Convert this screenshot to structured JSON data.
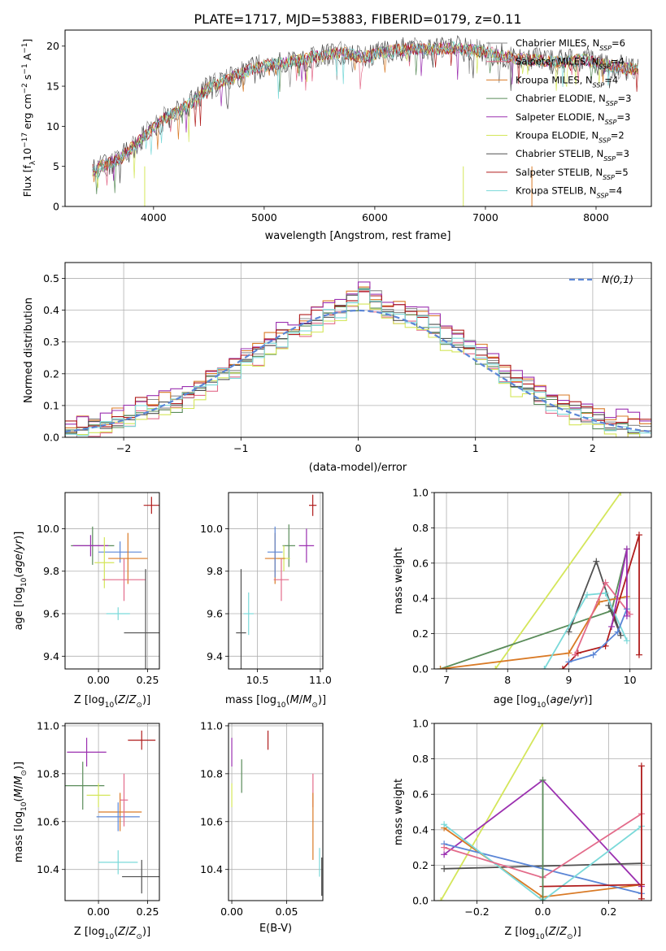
{
  "title": "PLATE=1717, MJD=53883, FIBERID=0179, z=0.11",
  "colors": {
    "chabrier_miles": "#8c8c8c",
    "salpeter_miles": "#e36b8a",
    "kroupa_miles": "#d97a26",
    "chabrier_elodie": "#5a8c5a",
    "salpeter_elodie": "#9b30b0",
    "kroupa_elodie": "#d4e65a",
    "chabrier_stelib": "#505050",
    "salpeter_stelib": "#b01c1c",
    "kroupa_stelib": "#7ad9d9",
    "blue": "#5b86d6",
    "grid": "#b0b0b0"
  },
  "chart_data": [
    {
      "type": "line",
      "panel": "spectrum",
      "xlabel": "wavelength [Angstrom, rest frame]",
      "ylabel": "Flux [f_λ10^−17 erg cm^−2 s^−1 A^−1]",
      "xlim": [
        3200,
        8500
      ],
      "ylim": [
        0,
        22
      ],
      "xticks": [
        4000,
        5000,
        6000,
        7000,
        8000
      ],
      "yticks": [
        0,
        5,
        10,
        15,
        20
      ],
      "legend_position": "right",
      "x": [
        3450,
        3700,
        3900,
        4100,
        4300,
        4500,
        4700,
        4900,
        5100,
        5300,
        5500,
        5700,
        5900,
        6100,
        6300,
        6500,
        6700,
        6900,
        7100,
        7300,
        7500,
        7700,
        7900,
        8100,
        8300
      ],
      "y": [
        4.5,
        6.0,
        8.5,
        11.0,
        12.5,
        14.8,
        16.0,
        17.2,
        17.8,
        18.2,
        18.8,
        19.2,
        18.6,
        19.3,
        19.6,
        19.6,
        19.8,
        19.4,
        19.0,
        18.4,
        18.2,
        18.0,
        18.3,
        17.6,
        17.2
      ],
      "series": [
        {
          "name": "Chabrier MILES, N_SSP=6",
          "label_main": "Chabrier MILES, N",
          "label_sub": "SSP",
          "label_tail": "=6",
          "color_key": "chabrier_miles"
        },
        {
          "name": "Salpeter MILES, N_SSP=4",
          "label_main": "Salpeter MILES, N",
          "label_sub": "SSP",
          "label_tail": "=4",
          "color_key": "salpeter_miles"
        },
        {
          "name": "Kroupa MILES, N_SSP=4",
          "label_main": "Kroupa MILES, N",
          "label_sub": "SSP",
          "label_tail": "=4",
          "color_key": "kroupa_miles"
        },
        {
          "name": "Chabrier ELODIE, N_SSP=3",
          "label_main": "Chabrier ELODIE, N",
          "label_sub": "SSP",
          "label_tail": "=3",
          "color_key": "chabrier_elodie"
        },
        {
          "name": "Salpeter ELODIE, N_SSP=3",
          "label_main": "Salpeter ELODIE, N",
          "label_sub": "SSP",
          "label_tail": "=3",
          "color_key": "salpeter_elodie"
        },
        {
          "name": "Kroupa ELODIE, N_SSP=2",
          "label_main": "Kroupa ELODIE, N",
          "label_sub": "SSP",
          "label_tail": "=2",
          "color_key": "kroupa_elodie"
        },
        {
          "name": "Chabrier STELIB, N_SSP=3",
          "label_main": "Chabrier STELIB, N",
          "label_sub": "SSP",
          "label_tail": "=3",
          "color_key": "chabrier_stelib"
        },
        {
          "name": "Salpeter STELIB, N_SSP=5",
          "label_main": "Salpeter STELIB, N",
          "label_sub": "SSP",
          "label_tail": "=5",
          "color_key": "salpeter_stelib"
        },
        {
          "name": "Kroupa STELIB, N_SSP=4",
          "label_main": "Kroupa STELIB, N",
          "label_sub": "SSP",
          "label_tail": "=4",
          "color_key": "kroupa_stelib"
        }
      ]
    },
    {
      "type": "line",
      "panel": "residual_histogram",
      "xlabel": "(data-model)/error",
      "ylabel": "Normed distribution",
      "xlim": [
        -2.5,
        2.5
      ],
      "ylim": [
        0,
        0.55
      ],
      "xticks": [
        -2,
        -1,
        0,
        1,
        2
      ],
      "yticks": [
        0.0,
        0.1,
        0.2,
        0.3,
        0.4,
        0.5
      ],
      "grid": true,
      "legend_label": "N(0,1)",
      "legend_position": "top-right",
      "bin_width": 0.1,
      "histogram_values": [
        0.02,
        0.03,
        0.03,
        0.04,
        0.05,
        0.06,
        0.09,
        0.09,
        0.1,
        0.11,
        0.13,
        0.15,
        0.18,
        0.2,
        0.21,
        0.24,
        0.26,
        0.29,
        0.31,
        0.33,
        0.35,
        0.37,
        0.39,
        0.4,
        0.43,
        0.46,
        0.43,
        0.41,
        0.39,
        0.38,
        0.37,
        0.34,
        0.31,
        0.3,
        0.28,
        0.26,
        0.23,
        0.2,
        0.17,
        0.15,
        0.13,
        0.11,
        0.1,
        0.08,
        0.07,
        0.05,
        0.04,
        0.04,
        0.03,
        0.02
      ],
      "series_offsets": [
        0.01,
        -0.015,
        0.02,
        -0.01,
        0.03,
        -0.02,
        0.0,
        0.015,
        -0.005
      ]
    },
    {
      "type": "scatter",
      "panel": "age_vs_Z",
      "xlabel": "Z [log10(Z/Z⊙)]",
      "ylabel": "age  [log10(age/yr)]",
      "xlim": [
        -0.17,
        0.31
      ],
      "ylim": [
        9.34,
        10.17
      ],
      "xticks": [
        0.0,
        0.25
      ],
      "yticks": [
        9.4,
        9.6,
        9.8,
        10.0
      ],
      "points": [
        {
          "x": 0.27,
          "y": 10.11,
          "xerr": 0.04,
          "yerr": 0.04,
          "color_key": "salpeter_stelib"
        },
        {
          "x": -0.03,
          "y": 9.92,
          "xerr": 0.11,
          "yerr": 0.09,
          "color_key": "chabrier_elodie"
        },
        {
          "x": -0.04,
          "y": 9.92,
          "xerr": 0.09,
          "yerr": 0.05,
          "color_key": "salpeter_elodie"
        },
        {
          "x": 0.11,
          "y": 9.89,
          "xerr": 0.11,
          "yerr": 0.05,
          "color_key": "blue"
        },
        {
          "x": 0.15,
          "y": 9.86,
          "xerr": 0.1,
          "yerr": 0.12,
          "color_key": "kroupa_miles"
        },
        {
          "x": 0.03,
          "y": 9.84,
          "xerr": 0.05,
          "yerr": 0.12,
          "color_key": "kroupa_elodie"
        },
        {
          "x": 0.13,
          "y": 9.76,
          "xerr": 0.11,
          "yerr": 0.1,
          "color_key": "salpeter_miles"
        },
        {
          "x": 0.1,
          "y": 9.6,
          "xerr": 0.06,
          "yerr": 0.03,
          "color_key": "kroupa_stelib"
        },
        {
          "x": 0.24,
          "y": 9.51,
          "xerr": 0.11,
          "yerr": 0.3,
          "color_key": "chabrier_stelib"
        }
      ]
    },
    {
      "type": "scatter",
      "panel": "age_vs_mass",
      "xlabel": "mass [log10(M/M⊙)]",
      "ylabel": "",
      "xlim": [
        10.27,
        11.02
      ],
      "ylim": [
        9.34,
        10.17
      ],
      "xticks": [
        10.5,
        11.0
      ],
      "yticks": [
        9.4,
        9.6,
        9.8,
        10.0
      ],
      "points": [
        {
          "x": 10.94,
          "y": 10.11,
          "xerr": 0.03,
          "yerr": 0.05,
          "color_key": "salpeter_stelib"
        },
        {
          "x": 10.89,
          "y": 9.92,
          "xerr": 0.06,
          "yerr": 0.08,
          "color_key": "salpeter_elodie"
        },
        {
          "x": 10.75,
          "y": 9.92,
          "xerr": 0.05,
          "yerr": 0.1,
          "color_key": "chabrier_elodie"
        },
        {
          "x": 10.71,
          "y": 9.86,
          "xerr": 0.05,
          "yerr": 0.06,
          "color_key": "kroupa_elodie"
        },
        {
          "x": 10.64,
          "y": 9.86,
          "xerr": 0.08,
          "yerr": 0.12,
          "color_key": "kroupa_miles"
        },
        {
          "x": 10.64,
          "y": 9.89,
          "xerr": 0.06,
          "yerr": 0.12,
          "color_key": "blue"
        },
        {
          "x": 10.69,
          "y": 9.76,
          "xerr": 0.06,
          "yerr": 0.1,
          "color_key": "salpeter_miles"
        },
        {
          "x": 10.43,
          "y": 9.6,
          "xerr": 0.04,
          "yerr": 0.1,
          "color_key": "kroupa_stelib"
        },
        {
          "x": 10.37,
          "y": 9.51,
          "xerr": 0.04,
          "yerr": 0.3,
          "color_key": "chabrier_stelib"
        }
      ]
    },
    {
      "type": "line",
      "panel": "mass_weight_vs_age",
      "xlabel": "age  [log10(age/yr)]",
      "ylabel": "mass weight",
      "xlim": [
        6.8,
        10.35
      ],
      "ylim": [
        0,
        1.0
      ],
      "xticks": [
        7,
        8,
        9,
        10
      ],
      "yticks": [
        0.0,
        0.2,
        0.4,
        0.6,
        0.8,
        1.0
      ],
      "series": [
        {
          "color_key": "kroupa_elodie",
          "x": [
            7.8,
            9.85
          ],
          "y": [
            0.0,
            1.0
          ]
        },
        {
          "color_key": "chabrier_elodie",
          "x": [
            6.9,
            9.7,
            9.95
          ],
          "y": [
            0.0,
            0.33,
            0.68
          ]
        },
        {
          "color_key": "kroupa_miles",
          "x": [
            6.9,
            9.0,
            9.5,
            9.95
          ],
          "y": [
            0.0,
            0.09,
            0.38,
            0.41
          ]
        },
        {
          "color_key": "chabrier_stelib",
          "x": [
            9.0,
            9.45,
            9.85,
            9.65
          ],
          "y": [
            0.21,
            0.61,
            0.19,
            0.36
          ]
        },
        {
          "color_key": "salpeter_stelib",
          "x": [
            8.9,
            9.15,
            9.6,
            10.15,
            10.15
          ],
          "y": [
            0.0,
            0.09,
            0.13,
            0.76,
            0.08
          ]
        },
        {
          "color_key": "kroupa_stelib",
          "x": [
            8.6,
            9.3,
            9.6,
            9.95
          ],
          "y": [
            0.0,
            0.42,
            0.43,
            0.16
          ]
        },
        {
          "color_key": "salpeter_miles",
          "x": [
            9.1,
            9.6,
            10.0
          ],
          "y": [
            0.08,
            0.49,
            0.31
          ]
        },
        {
          "color_key": "blue",
          "x": [
            9.0,
            9.4,
            9.8,
            9.95
          ],
          "y": [
            0.04,
            0.08,
            0.21,
            0.34
          ]
        },
        {
          "color_key": "salpeter_elodie",
          "x": [
            9.7,
            9.95,
            9.95
          ],
          "y": [
            0.24,
            0.68,
            0.3
          ]
        }
      ]
    },
    {
      "type": "scatter",
      "panel": "mass_vs_Z",
      "xlabel": "Z [log10(Z/Z⊙)]",
      "ylabel": "mass [log10(M/M⊙)]",
      "xlim": [
        -0.17,
        0.31
      ],
      "ylim": [
        10.27,
        11.01
      ],
      "xticks": [
        0.0,
        0.25
      ],
      "yticks": [
        10.4,
        10.6,
        10.8,
        11.0
      ],
      "points": [
        {
          "x": 0.22,
          "y": 10.94,
          "xerr": 0.07,
          "yerr": 0.04,
          "color_key": "salpeter_stelib"
        },
        {
          "x": -0.06,
          "y": 10.89,
          "xerr": 0.1,
          "yerr": 0.06,
          "color_key": "salpeter_elodie"
        },
        {
          "x": -0.08,
          "y": 10.75,
          "xerr": 0.11,
          "yerr": 0.1,
          "color_key": "chabrier_elodie"
        },
        {
          "x": 0.0,
          "y": 10.71,
          "xerr": 0.06,
          "yerr": 0.05,
          "color_key": "kroupa_elodie"
        },
        {
          "x": 0.11,
          "y": 10.64,
          "xerr": 0.11,
          "yerr": 0.08,
          "color_key": "kroupa_miles"
        },
        {
          "x": 0.1,
          "y": 10.62,
          "xerr": 0.11,
          "yerr": 0.06,
          "color_key": "blue"
        },
        {
          "x": 0.13,
          "y": 10.69,
          "xerr": 0.02,
          "yerr": 0.11,
          "color_key": "salpeter_miles"
        },
        {
          "x": 0.1,
          "y": 10.43,
          "xerr": 0.1,
          "yerr": 0.05,
          "color_key": "kroupa_stelib"
        },
        {
          "x": 0.22,
          "y": 10.37,
          "xerr": 0.1,
          "yerr": 0.07,
          "color_key": "chabrier_stelib"
        }
      ]
    },
    {
      "type": "scatter",
      "panel": "mass_vs_ebv",
      "xlabel": "E(B-V)",
      "ylabel": "",
      "xlim": [
        -0.003,
        0.083
      ],
      "ylim": [
        10.27,
        11.01
      ],
      "xticks": [
        0.0,
        0.05
      ],
      "yticks": [
        10.4,
        10.6,
        10.8,
        11.0
      ],
      "points": [
        {
          "x": 0.0,
          "y": 10.89,
          "yerr": 0.06,
          "color_key": "salpeter_elodie"
        },
        {
          "x": 0.0,
          "y": 10.71,
          "yerr": 0.05,
          "color_key": "kroupa_elodie"
        },
        {
          "x": 0.009,
          "y": 10.79,
          "yerr": 0.07,
          "color_key": "chabrier_elodie"
        },
        {
          "x": 0.033,
          "y": 10.94,
          "yerr": 0.04,
          "color_key": "salpeter_stelib"
        },
        {
          "x": 0.074,
          "y": 10.73,
          "yerr": 0.07,
          "color_key": "salpeter_miles"
        },
        {
          "x": 0.074,
          "y": 10.58,
          "yerr": 0.14,
          "color_key": "kroupa_miles"
        },
        {
          "x": 0.08,
          "y": 10.43,
          "yerr": 0.06,
          "color_key": "kroupa_stelib"
        },
        {
          "x": 0.082,
          "y": 10.37,
          "yerr": 0.08,
          "color_key": "chabrier_stelib"
        }
      ]
    },
    {
      "type": "line",
      "panel": "mass_weight_vs_Z",
      "xlabel": "Z [log10(Z/Z⊙)]",
      "ylabel": "mass weight",
      "xlim": [
        -0.33,
        0.33
      ],
      "ylim": [
        0,
        1.0
      ],
      "xticks": [
        -0.2,
        0.0,
        0.2
      ],
      "yticks": [
        0.0,
        0.2,
        0.4,
        0.6,
        0.8,
        1.0
      ],
      "series": [
        {
          "color_key": "kroupa_elodie",
          "x": [
            -0.31,
            0.0
          ],
          "y": [
            0.0,
            1.0
          ]
        },
        {
          "color_key": "salpeter_elodie",
          "x": [
            -0.3,
            0.0,
            0.3
          ],
          "y": [
            0.26,
            0.68,
            0.08
          ]
        },
        {
          "color_key": "chabrier_stelib",
          "x": [
            -0.3,
            0.3
          ],
          "y": [
            0.18,
            0.21
          ]
        },
        {
          "color_key": "kroupa_miles",
          "x": [
            -0.3,
            0.0,
            0.3
          ],
          "y": [
            0.41,
            0.02,
            0.09
          ]
        },
        {
          "color_key": "blue",
          "x": [
            -0.3,
            0.3
          ],
          "y": [
            0.32,
            0.04
          ]
        },
        {
          "color_key": "kroupa_stelib",
          "x": [
            -0.3,
            0.0,
            0.3
          ],
          "y": [
            0.43,
            0.0,
            0.42
          ]
        },
        {
          "color_key": "salpeter_miles",
          "x": [
            -0.3,
            0.0,
            0.3
          ],
          "y": [
            0.3,
            0.13,
            0.49
          ]
        },
        {
          "color_key": "salpeter_stelib",
          "x": [
            0.0,
            0.3,
            0.3,
            0.3
          ],
          "y": [
            0.08,
            0.09,
            0.76,
            0.01
          ]
        },
        {
          "color_key": "chabrier_elodie",
          "x": [
            0.0,
            0.0
          ],
          "y": [
            0.0,
            0.68
          ]
        }
      ]
    }
  ]
}
